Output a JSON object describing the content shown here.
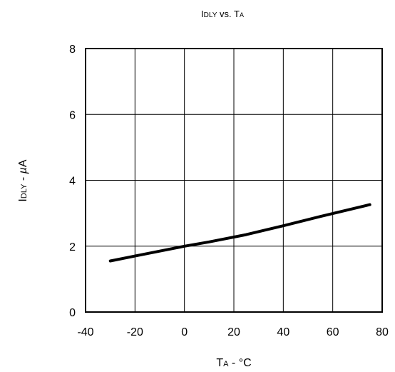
{
  "chart_data": {
    "type": "line",
    "title": {
      "main": "I",
      "sub": "DLY",
      "middle": " vs. T",
      "sub2": "A"
    },
    "xlabel": {
      "main": "T",
      "sub": "A",
      "rest": " - °C"
    },
    "ylabel": {
      "main": "I",
      "sub": "DLY",
      "rest": " - ",
      "unit_italic": "µ",
      "unit_tail": "A"
    },
    "xlim": [
      -40,
      80
    ],
    "ylim": [
      0,
      8
    ],
    "xticks": [
      -40,
      -20,
      0,
      20,
      40,
      60,
      80
    ],
    "yticks": [
      0,
      2,
      4,
      6,
      8
    ],
    "xtick_labels": [
      "-40",
      "-20",
      "0",
      "20",
      "40",
      "60",
      "80"
    ],
    "ytick_labels": [
      "0",
      "2",
      "4",
      "6",
      "8"
    ],
    "grid": true,
    "series": [
      {
        "x": [
          -30,
          -20,
          -10,
          0,
          10,
          25,
          40,
          55,
          75
        ],
        "y": [
          1.55,
          1.7,
          1.85,
          2.0,
          2.13,
          2.35,
          2.62,
          2.9,
          3.26
        ],
        "color": "#000000"
      }
    ]
  }
}
